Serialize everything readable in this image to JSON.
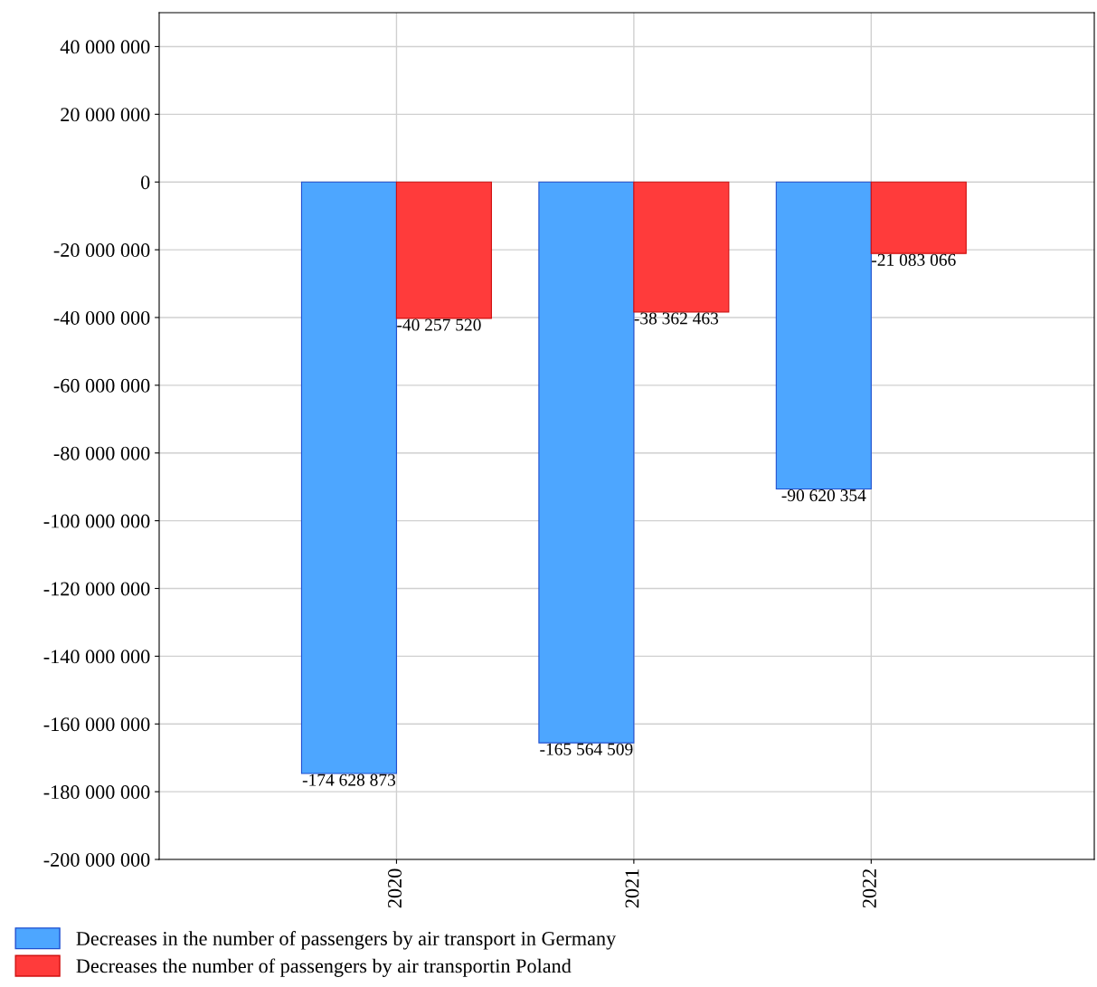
{
  "chart_data": {
    "type": "bar",
    "categories": [
      "2020",
      "2021",
      "2022"
    ],
    "series": [
      {
        "name": "Decreases in the number of passengers by air transport in Germany",
        "color": "#4da6ff",
        "values": [
          -174628873,
          -165564509,
          -90620354
        ],
        "value_labels": [
          "-174 628 873",
          "-165 564 509",
          "-90 620 354"
        ]
      },
      {
        "name": "Decreases the number of passengers by air transportin Poland",
        "color": "#ff3b3b",
        "values": [
          -40257520,
          -38362463,
          -21083066
        ],
        "value_labels": [
          "-40 257 520",
          "-38 362 463",
          "-21 083 066"
        ]
      }
    ],
    "ylim": [
      -200000000,
      50000000
    ],
    "yticks": [
      {
        "value": -200000000,
        "label": "-200 000 000"
      },
      {
        "value": -180000000,
        "label": "-180 000 000"
      },
      {
        "value": -160000000,
        "label": "-160 000 000"
      },
      {
        "value": -140000000,
        "label": "-140 000 000"
      },
      {
        "value": -120000000,
        "label": "-120 000 000"
      },
      {
        "value": -100000000,
        "label": "-100 000 000"
      },
      {
        "value": -80000000,
        "label": "-80 000 000"
      },
      {
        "value": -60000000,
        "label": "-60 000 000"
      },
      {
        "value": -40000000,
        "label": "-40 000 000"
      },
      {
        "value": -20000000,
        "label": "-20 000 000"
      },
      0,
      {
        "value": 20000000,
        "label": "20 000 000"
      },
      {
        "value": 40000000,
        "label": "40 000 000"
      }
    ],
    "grid": true,
    "legend": "bottom left"
  }
}
